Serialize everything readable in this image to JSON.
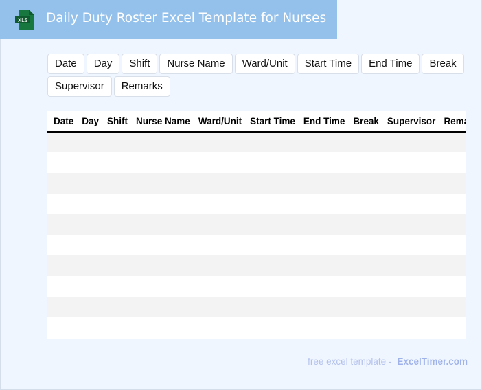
{
  "header": {
    "title": "Daily Duty Roster Excel Template for Nurses",
    "icon": "xls-file-icon",
    "icon_text": "XLS",
    "color": "#93c1eb"
  },
  "chips": [
    "Date",
    "Day",
    "Shift",
    "Nurse Name",
    "Ward/Unit",
    "Start Time",
    "End Time",
    "Break",
    "Supervisor",
    "Remarks"
  ],
  "table": {
    "columns": [
      "Date",
      "Day",
      "Shift",
      "Nurse Name",
      "Ward/Unit",
      "Start Time",
      "End Time",
      "Break",
      "Supervisor",
      "Remarks"
    ],
    "row_count": 10
  },
  "footer": {
    "text": "free excel template -",
    "link": "ExcelTimer.com"
  }
}
